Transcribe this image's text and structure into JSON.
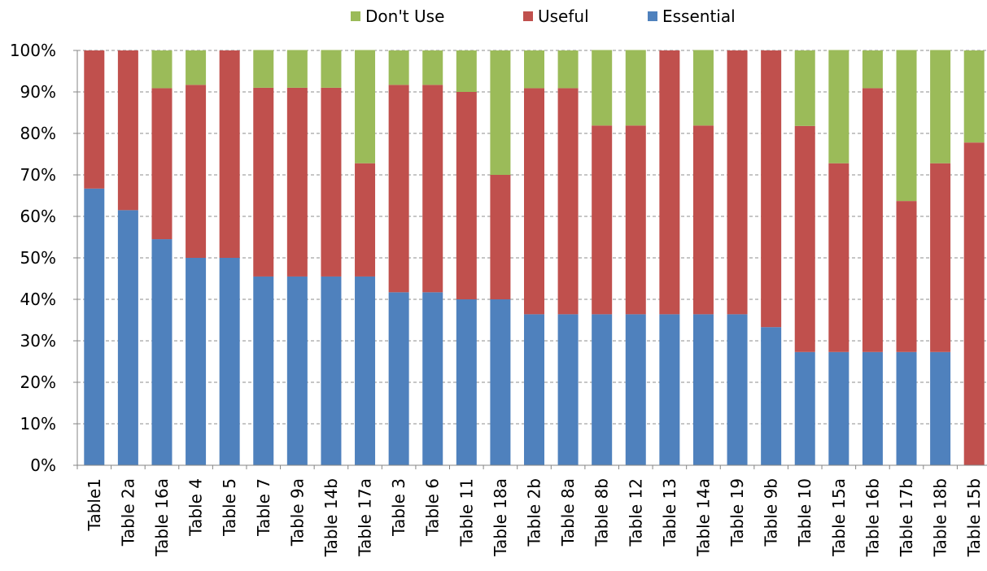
{
  "chart_data": {
    "type": "bar",
    "stacked": true,
    "percent": true,
    "categories": [
      "Table1",
      "Table 2a",
      "Table 16a",
      "Table 4",
      "Table 5",
      "Table 7",
      "Table 9a",
      "Table 14b",
      "Table 17a",
      "Table 3",
      "Table 6",
      "Table 11",
      "Table 18a",
      "Table 2b",
      "Table 8a",
      "Table 8b",
      "Table 12",
      "Table 13",
      "Table 14a",
      "Table 19",
      "Table 9b",
      "Table 10",
      "Table 15a",
      "Table 16b",
      "Table 17b",
      "Table 18b",
      "Table 15b"
    ],
    "series": [
      {
        "name": "Essential",
        "color": "#4F81BD",
        "values": [
          66.7,
          61.5,
          54.5,
          50,
          50,
          45.5,
          45.5,
          45.5,
          45.5,
          41.7,
          41.7,
          40,
          40,
          36.4,
          36.4,
          36.4,
          36.4,
          36.4,
          36.4,
          36.4,
          33.3,
          27.3,
          27.3,
          27.3,
          27.3,
          27.3,
          0
        ]
      },
      {
        "name": "Useful",
        "color": "#C0504D",
        "values": [
          33.3,
          38.5,
          36.4,
          41.7,
          50,
          45.5,
          45.5,
          45.5,
          27.3,
          50,
          50,
          50,
          30,
          54.5,
          54.5,
          45.5,
          45.5,
          63.6,
          45.5,
          63.6,
          66.7,
          54.5,
          45.5,
          63.6,
          36.4,
          45.5,
          77.8
        ]
      },
      {
        "name": "Don't Use",
        "color": "#9BBB59",
        "values": [
          0,
          0,
          9.1,
          8.3,
          0,
          9.1,
          9.1,
          9.1,
          27.3,
          8.3,
          8.3,
          10,
          30,
          9.1,
          9.1,
          18.2,
          18.2,
          0,
          18.2,
          0,
          0,
          18.2,
          27.3,
          9.1,
          36.4,
          27.3,
          22.2
        ]
      }
    ],
    "yticks": [
      "0%",
      "10%",
      "20%",
      "30%",
      "40%",
      "50%",
      "60%",
      "70%",
      "80%",
      "90%",
      "100%"
    ],
    "ylim": [
      0,
      100
    ],
    "legend": {
      "position": "top",
      "order": [
        "Don't Use",
        "Useful",
        "Essential"
      ]
    },
    "grid": {
      "horizontal": true,
      "style": "dashed"
    },
    "title": "",
    "xlabel": "",
    "ylabel": ""
  }
}
